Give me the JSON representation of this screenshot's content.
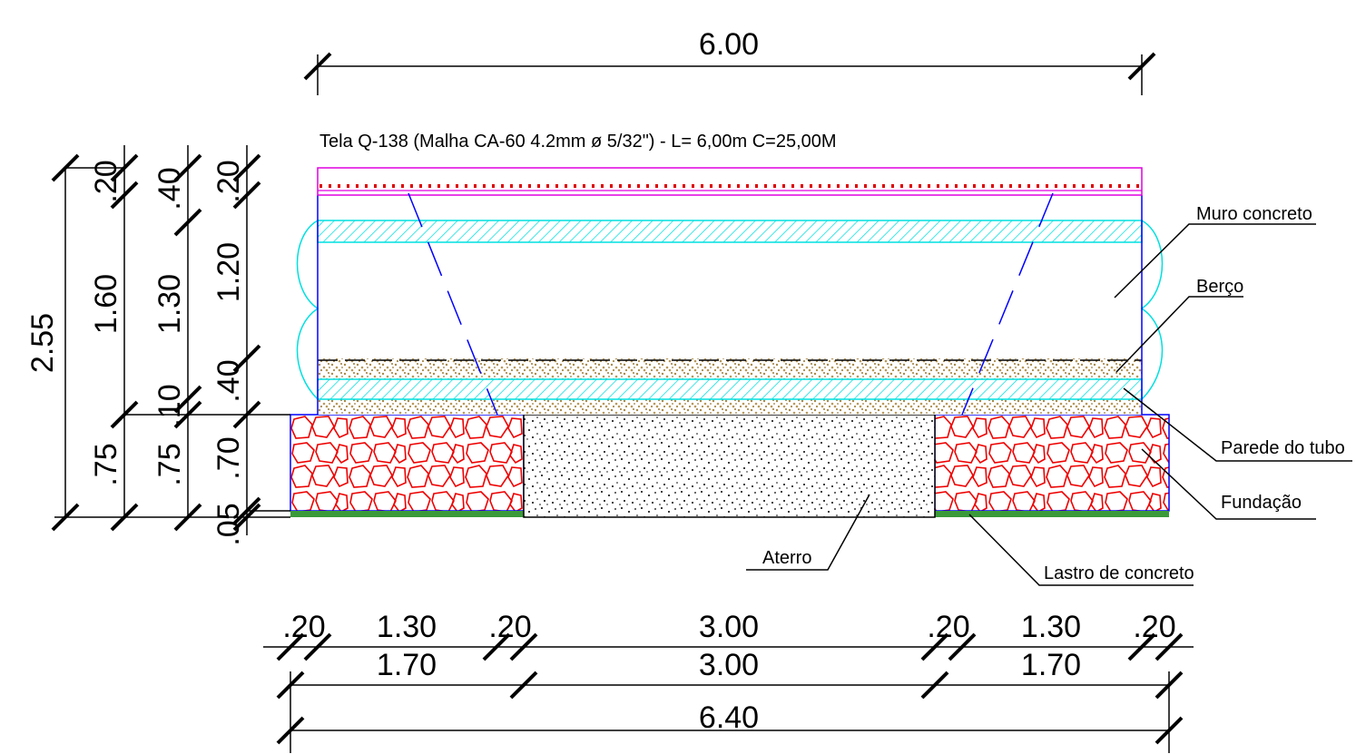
{
  "top_dimension": "6.00",
  "note": "Tela Q-138 (Malha CA-60 4.2mm ø 5/32\") - L= 6,00m  C=25,00M",
  "labels": [
    "Muro concreto",
    "Berço",
    "Parede do tubo",
    "Fundação",
    "Lastro de concreto",
    "Aterro"
  ],
  "vertical_dimensions": {
    "total": "2.55",
    "column_1": [
      ".20",
      "1.60",
      ".75"
    ],
    "column_2": [
      ".40",
      "1.30",
      ".10",
      ".75"
    ],
    "column_3": [
      ".20",
      "1.20",
      ".40",
      ".70",
      ".05"
    ]
  },
  "horizontal_dimensions": {
    "row_1": [
      ".20",
      "1.30",
      ".20",
      "3.00",
      ".20",
      "1.30",
      ".20"
    ],
    "row_2": [
      "1.70",
      "3.00",
      "1.70"
    ],
    "total": "6.40"
  }
}
